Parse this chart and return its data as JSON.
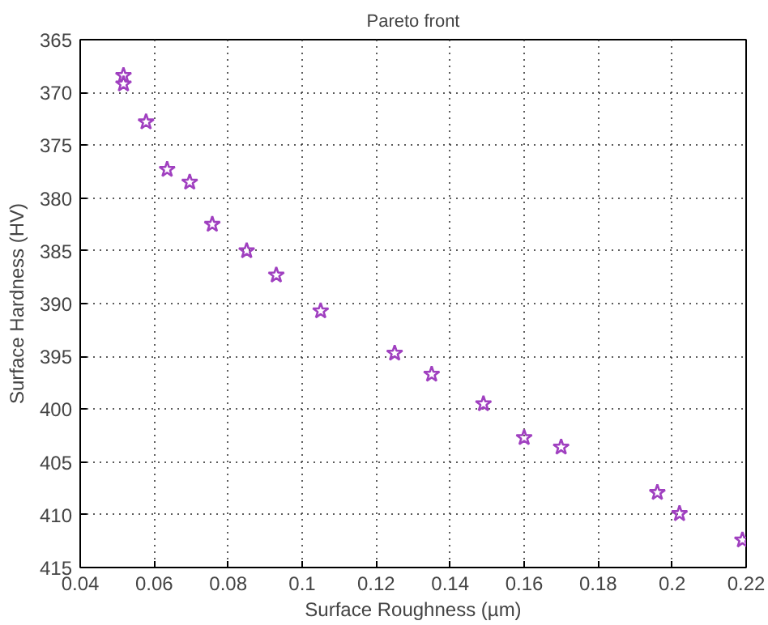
{
  "chart_data": {
    "type": "scatter",
    "title": "Pareto front",
    "xlabel": "Surface Roughness (µm)",
    "ylabel": "Surface Hardness (HV)",
    "x": [
      0.0517,
      0.0517,
      0.0578,
      0.0635,
      0.0696,
      0.0757,
      0.085,
      0.093,
      0.105,
      0.125,
      0.135,
      0.149,
      0.16,
      0.17,
      0.196,
      0.202,
      0.219
    ],
    "series": [
      {
        "color": "#a040c0",
        "values": [
          368.4,
          369.2,
          372.8,
          377.3,
          378.5,
          382.5,
          385.0,
          387.3,
          390.7,
          394.7,
          396.7,
          399.5,
          402.7,
          403.6,
          407.9,
          409.9,
          412.4
        ]
      }
    ],
    "xlim": [
      0.04,
      0.22
    ],
    "xticks": [
      0.04,
      0.06,
      0.08,
      {
        "value": 0.1,
        "label": "0.1"
      },
      0.12,
      0.14,
      0.16,
      0.18,
      {
        "value": 0.2,
        "label": "0.2"
      },
      0.22
    ],
    "ylim": [
      415,
      365
    ],
    "yticks": [
      365,
      370,
      375,
      380,
      385,
      390,
      395,
      400,
      405,
      410,
      415
    ],
    "grid": true,
    "marker": "star"
  }
}
